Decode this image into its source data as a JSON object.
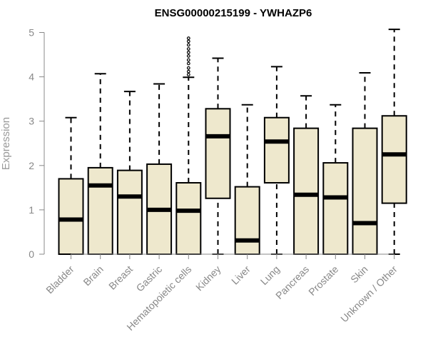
{
  "chart_data": {
    "type": "box",
    "title": "ENSG00000215199 - YWHAZP6",
    "ylabel": "Expression",
    "xlabel": "",
    "ylim": [
      0,
      5
    ],
    "yticks": [
      "0",
      "1",
      "2",
      "3",
      "4",
      "5"
    ],
    "box_fill": "#EEE8CD",
    "box_stroke": "#000000",
    "categories": [
      "Bladder",
      "Brain",
      "Breast",
      "Gastric",
      "Hematopoietic cells",
      "Kidney",
      "Liver",
      "Lung",
      "Pancreas",
      "Prostate",
      "Skin",
      "Unknown / Other"
    ],
    "boxes": [
      {
        "min": 0,
        "q1": 0,
        "median": 0.78,
        "q3": 1.7,
        "max": 3.08,
        "outliers": []
      },
      {
        "min": 0,
        "q1": 0,
        "median": 1.55,
        "q3": 1.95,
        "max": 4.07,
        "outliers": []
      },
      {
        "min": 0,
        "q1": 0,
        "median": 1.3,
        "q3": 1.89,
        "max": 3.67,
        "outliers": []
      },
      {
        "min": 0,
        "q1": 0,
        "median": 1.0,
        "q3": 2.03,
        "max": 3.84,
        "outliers": []
      },
      {
        "min": 0,
        "q1": 0,
        "median": 0.98,
        "q3": 1.61,
        "max": 3.99,
        "outliers": [
          4.05,
          4.12,
          4.2,
          4.3,
          4.38,
          4.47,
          4.55,
          4.63,
          4.72,
          4.8,
          4.87
        ]
      },
      {
        "min": 0,
        "q1": 1.26,
        "median": 2.66,
        "q3": 3.28,
        "max": 4.42,
        "outliers": []
      },
      {
        "min": 0,
        "q1": 0,
        "median": 0.31,
        "q3": 1.52,
        "max": 3.37,
        "outliers": []
      },
      {
        "min": 0,
        "q1": 1.61,
        "median": 2.54,
        "q3": 3.08,
        "max": 4.23,
        "outliers": []
      },
      {
        "min": 0,
        "q1": 0,
        "median": 1.34,
        "q3": 2.84,
        "max": 3.57,
        "outliers": []
      },
      {
        "min": 0,
        "q1": 0,
        "median": 1.28,
        "q3": 2.06,
        "max": 3.37,
        "outliers": []
      },
      {
        "min": 0,
        "q1": 0,
        "median": 0.7,
        "q3": 2.84,
        "max": 4.09,
        "outliers": []
      },
      {
        "min": 0,
        "q1": 1.15,
        "median": 2.25,
        "q3": 3.12,
        "max": 5.07,
        "outliers": []
      }
    ]
  }
}
